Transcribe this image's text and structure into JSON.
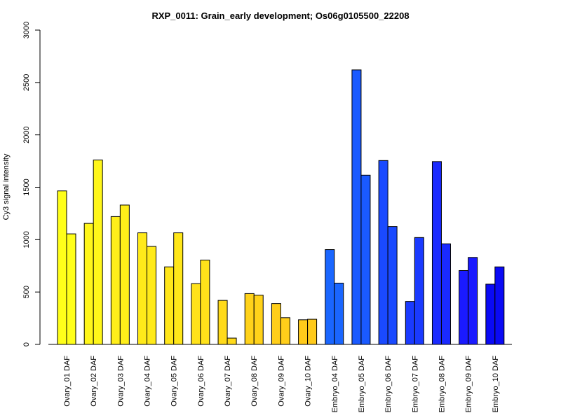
{
  "chart_data": {
    "type": "bar",
    "title": "RXP_0011: Grain_early development; Os06g0105500_22208",
    "xlabel": "",
    "ylabel": "Cy3 signal intensity",
    "ylim": [
      0,
      3000
    ],
    "yticks": [
      0,
      500,
      1000,
      1500,
      2000,
      2500,
      3000
    ],
    "grid": false,
    "legend": "none",
    "categories": [
      "Ovary_01 DAF",
      "Ovary_02 DAF",
      "Ovary_03 DAF",
      "Ovary_04 DAF",
      "Ovary_05 DAF",
      "Ovary_06 DAF",
      "Ovary_07 DAF",
      "Ovary_08 DAF",
      "Ovary_09 DAF",
      "Ovary_10 DAF",
      "Embryo_04 DAF",
      "Embryo_05 DAF",
      "Embryo_06 DAF",
      "Embryo_07 DAF",
      "Embryo_08 DAF",
      "Embryo_09 DAF",
      "Embryo_10 DAF"
    ],
    "series": [
      {
        "values": [
          1465,
          1155,
          1220,
          1065,
          740,
          580,
          420,
          485,
          390,
          235,
          905,
          2620,
          1755,
          410,
          1745,
          705,
          575
        ]
      },
      {
        "values": [
          1055,
          1760,
          1330,
          935,
          1065,
          805,
          60,
          470,
          255,
          240,
          585,
          1615,
          1125,
          1020,
          960,
          830,
          740
        ]
      }
    ],
    "colors": [
      "#FFFF1A",
      "#FFF61A",
      "#FFEE1A",
      "#FFEA1A",
      "#FFE61A",
      "#FFE21A",
      "#FFDA1A",
      "#FFD21A",
      "#FFCE1A",
      "#FFCA1A",
      "#1A66FF",
      "#1A5AFF",
      "#1A4AFF",
      "#1A3AFF",
      "#1A2AFF",
      "#1A1AFF",
      "#0A0AF5"
    ]
  }
}
